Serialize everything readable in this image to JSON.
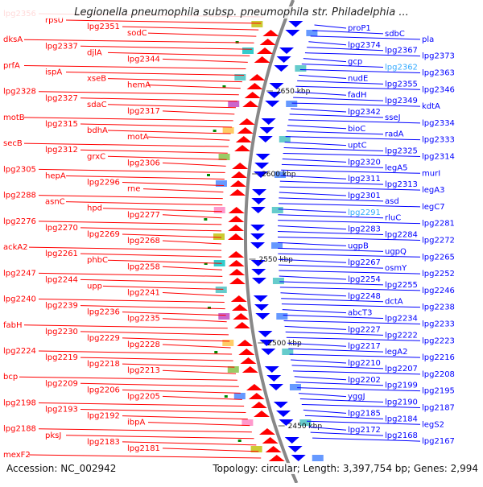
{
  "title": "Legionella pneumophila subsp. pneumophila str. Philadelphia ...",
  "footer": {
    "accession": "Accession: NC_002942",
    "summary": "Topology: circular; Length: 3,397,754 bp; Genes: 2,994"
  },
  "colors": {
    "forward_strand": "#ff0000",
    "reverse_strand": "#0000ff",
    "highlight": "#33aaff",
    "backbone": "#888888",
    "tick_mark": "#008800"
  },
  "scale_ticks": [
    "2650 kbp",
    "2600 kbp",
    "2550 kbp",
    "2500 kbp",
    "2450 kbp"
  ],
  "forward_labels": [
    "lpg2356",
    "rpsU",
    "lpg2351",
    "sodC",
    "dksA",
    "lpg2337",
    "djlA",
    "lpg2344",
    "prfA",
    "ispA",
    "xseB",
    "hemA",
    "lpg2328",
    "lpg2327",
    "sdaC",
    "lpg2317",
    "motB",
    "lpg2315",
    "bdhA",
    "motA",
    "secB",
    "lpg2312",
    "grxC",
    "lpg2306",
    "lpg2305",
    "hepA",
    "lpg2296",
    "rne",
    "lpg2288",
    "asnC",
    "hpd",
    "lpg2277",
    "lpg2276",
    "lpg2270",
    "lpg2269",
    "lpg2268",
    "ackA2",
    "lpg2261",
    "phbC",
    "lpg2258",
    "lpg2247",
    "lpg2244",
    "upp",
    "lpg2241",
    "lpg2240",
    "lpg2239",
    "lpg2236",
    "lpg2235",
    "fabH",
    "lpg2230",
    "lpg2229",
    "lpg2228",
    "lpg2224",
    "lpg2219",
    "lpg2218",
    "lpg2213",
    "bcp",
    "lpg2209",
    "lpg2206",
    "lpg2205",
    "lpg2198",
    "lpg2193",
    "lpg2192",
    "ibpA",
    "lpg2188",
    "pksJ",
    "lpg2183",
    "lpg2181",
    "mexF2"
  ],
  "reverse_labels": [
    "proP1",
    "sdbC",
    "pla",
    "lpg2374",
    "lpg2367",
    "lpg2373",
    "gcp",
    "lpg2362",
    "lpg2363",
    "nudE",
    "lpg2355",
    "lpg2346",
    "fadH",
    "lpg2349",
    "kdtA",
    "lpg2342",
    "sseJ",
    "lpg2334",
    "bioC",
    "radA",
    "lpg2333",
    "uptC",
    "lpg2325",
    "lpg2314",
    "lpg2320",
    "legA5",
    "murI",
    "lpg2311",
    "lpg2313",
    "legA3",
    "lpg2301",
    "asd",
    "legC7",
    "lpg2291",
    "rluC",
    "lpg2281",
    "lpg2283",
    "lpg2284",
    "lpg2272",
    "ugpB",
    "ugpQ",
    "lpg2265",
    "lpg2267",
    "osmY",
    "lpg2252",
    "lpg2254",
    "lpg2255",
    "lpg2246",
    "lpg2248",
    "dctA",
    "lpg2238",
    "abcT3",
    "lpg2234",
    "lpg2233",
    "lpg2227",
    "lpg2222",
    "lpg2223",
    "lpg2217",
    "legA2",
    "lpg2216",
    "lpg2210",
    "lpg2207",
    "lpg2208",
    "lpg2202",
    "lpg2199",
    "lpg2195",
    "yggJ",
    "lpg2190",
    "lpg2187",
    "lpg2185",
    "lpg2184",
    "legS2",
    "lpg2172",
    "lpg2168",
    "lpg2167"
  ]
}
